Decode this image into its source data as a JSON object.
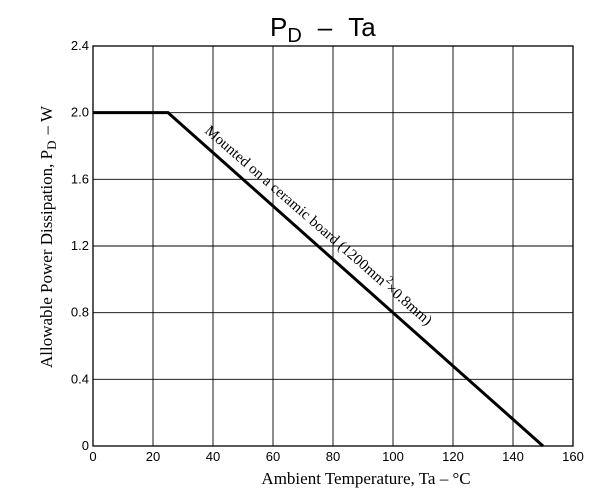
{
  "chart_data": {
    "type": "line",
    "title_main": "P",
    "title_sub": "D",
    "title_sep": "–",
    "title_var": "Ta",
    "xlabel": "Ambient Temperature, Ta  –  °C",
    "ylabel_main": "Allowable Power Dissipation, P",
    "ylabel_sub": "D",
    "ylabel_unit": "– W",
    "xlim": [
      0,
      160
    ],
    "ylim": [
      0,
      2.4
    ],
    "xticks": [
      0,
      20,
      40,
      60,
      80,
      100,
      120,
      140,
      160
    ],
    "yticks": [
      0,
      0.4,
      0.8,
      1.2,
      1.6,
      2.0,
      2.4
    ],
    "ytick_labels": [
      "0",
      "0.4",
      "0.8",
      "1.2",
      "1.6",
      "2.0",
      "2.4"
    ],
    "grid": true,
    "series": [
      {
        "x": [
          0,
          25,
          150
        ],
        "y": [
          2.0,
          2.0,
          0
        ],
        "color": "#000000"
      }
    ],
    "annotation": {
      "main": "Mounted on a ceramic board (1200mm",
      "sup": "2",
      "tail": "×0.8mm)"
    }
  }
}
